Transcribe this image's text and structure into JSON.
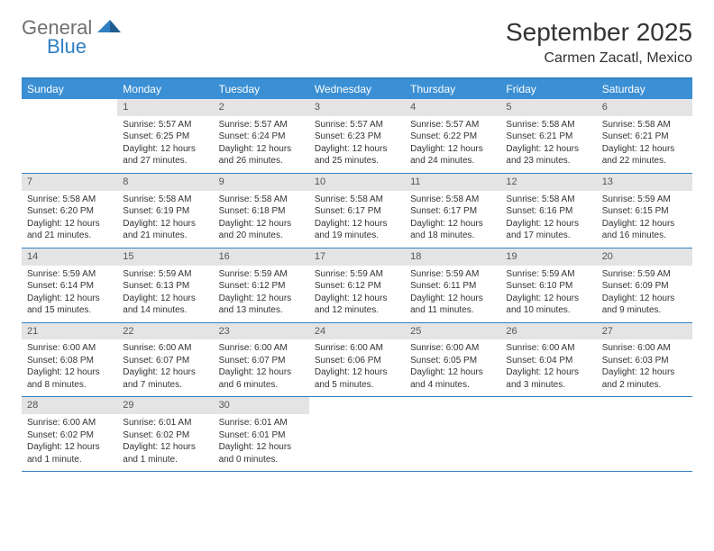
{
  "logo": {
    "line1": "General",
    "line2": "Blue"
  },
  "title": "September 2025",
  "location": "Carmen Zacatl, Mexico",
  "colors": {
    "accent": "#3b8fd4",
    "rule": "#2f80c3",
    "daybar": "#e4e4e4",
    "text": "#333333",
    "logo_gray": "#6f6f6f",
    "logo_blue": "#2f80c3",
    "background": "#ffffff"
  },
  "dow": [
    "Sunday",
    "Monday",
    "Tuesday",
    "Wednesday",
    "Thursday",
    "Friday",
    "Saturday"
  ],
  "weeks": [
    [
      {
        "n": "",
        "sr": "",
        "ss": "",
        "dl": ""
      },
      {
        "n": "1",
        "sr": "5:57 AM",
        "ss": "6:25 PM",
        "dl": "12 hours and 27 minutes."
      },
      {
        "n": "2",
        "sr": "5:57 AM",
        "ss": "6:24 PM",
        "dl": "12 hours and 26 minutes."
      },
      {
        "n": "3",
        "sr": "5:57 AM",
        "ss": "6:23 PM",
        "dl": "12 hours and 25 minutes."
      },
      {
        "n": "4",
        "sr": "5:57 AM",
        "ss": "6:22 PM",
        "dl": "12 hours and 24 minutes."
      },
      {
        "n": "5",
        "sr": "5:58 AM",
        "ss": "6:21 PM",
        "dl": "12 hours and 23 minutes."
      },
      {
        "n": "6",
        "sr": "5:58 AM",
        "ss": "6:21 PM",
        "dl": "12 hours and 22 minutes."
      }
    ],
    [
      {
        "n": "7",
        "sr": "5:58 AM",
        "ss": "6:20 PM",
        "dl": "12 hours and 21 minutes."
      },
      {
        "n": "8",
        "sr": "5:58 AM",
        "ss": "6:19 PM",
        "dl": "12 hours and 21 minutes."
      },
      {
        "n": "9",
        "sr": "5:58 AM",
        "ss": "6:18 PM",
        "dl": "12 hours and 20 minutes."
      },
      {
        "n": "10",
        "sr": "5:58 AM",
        "ss": "6:17 PM",
        "dl": "12 hours and 19 minutes."
      },
      {
        "n": "11",
        "sr": "5:58 AM",
        "ss": "6:17 PM",
        "dl": "12 hours and 18 minutes."
      },
      {
        "n": "12",
        "sr": "5:58 AM",
        "ss": "6:16 PM",
        "dl": "12 hours and 17 minutes."
      },
      {
        "n": "13",
        "sr": "5:59 AM",
        "ss": "6:15 PM",
        "dl": "12 hours and 16 minutes."
      }
    ],
    [
      {
        "n": "14",
        "sr": "5:59 AM",
        "ss": "6:14 PM",
        "dl": "12 hours and 15 minutes."
      },
      {
        "n": "15",
        "sr": "5:59 AM",
        "ss": "6:13 PM",
        "dl": "12 hours and 14 minutes."
      },
      {
        "n": "16",
        "sr": "5:59 AM",
        "ss": "6:12 PM",
        "dl": "12 hours and 13 minutes."
      },
      {
        "n": "17",
        "sr": "5:59 AM",
        "ss": "6:12 PM",
        "dl": "12 hours and 12 minutes."
      },
      {
        "n": "18",
        "sr": "5:59 AM",
        "ss": "6:11 PM",
        "dl": "12 hours and 11 minutes."
      },
      {
        "n": "19",
        "sr": "5:59 AM",
        "ss": "6:10 PM",
        "dl": "12 hours and 10 minutes."
      },
      {
        "n": "20",
        "sr": "5:59 AM",
        "ss": "6:09 PM",
        "dl": "12 hours and 9 minutes."
      }
    ],
    [
      {
        "n": "21",
        "sr": "6:00 AM",
        "ss": "6:08 PM",
        "dl": "12 hours and 8 minutes."
      },
      {
        "n": "22",
        "sr": "6:00 AM",
        "ss": "6:07 PM",
        "dl": "12 hours and 7 minutes."
      },
      {
        "n": "23",
        "sr": "6:00 AM",
        "ss": "6:07 PM",
        "dl": "12 hours and 6 minutes."
      },
      {
        "n": "24",
        "sr": "6:00 AM",
        "ss": "6:06 PM",
        "dl": "12 hours and 5 minutes."
      },
      {
        "n": "25",
        "sr": "6:00 AM",
        "ss": "6:05 PM",
        "dl": "12 hours and 4 minutes."
      },
      {
        "n": "26",
        "sr": "6:00 AM",
        "ss": "6:04 PM",
        "dl": "12 hours and 3 minutes."
      },
      {
        "n": "27",
        "sr": "6:00 AM",
        "ss": "6:03 PM",
        "dl": "12 hours and 2 minutes."
      }
    ],
    [
      {
        "n": "28",
        "sr": "6:00 AM",
        "ss": "6:02 PM",
        "dl": "12 hours and 1 minute."
      },
      {
        "n": "29",
        "sr": "6:01 AM",
        "ss": "6:02 PM",
        "dl": "12 hours and 1 minute."
      },
      {
        "n": "30",
        "sr": "6:01 AM",
        "ss": "6:01 PM",
        "dl": "12 hours and 0 minutes."
      },
      {
        "n": "",
        "sr": "",
        "ss": "",
        "dl": ""
      },
      {
        "n": "",
        "sr": "",
        "ss": "",
        "dl": ""
      },
      {
        "n": "",
        "sr": "",
        "ss": "",
        "dl": ""
      },
      {
        "n": "",
        "sr": "",
        "ss": "",
        "dl": ""
      }
    ]
  ],
  "labels": {
    "sunrise": "Sunrise:",
    "sunset": "Sunset:",
    "daylight": "Daylight:"
  }
}
